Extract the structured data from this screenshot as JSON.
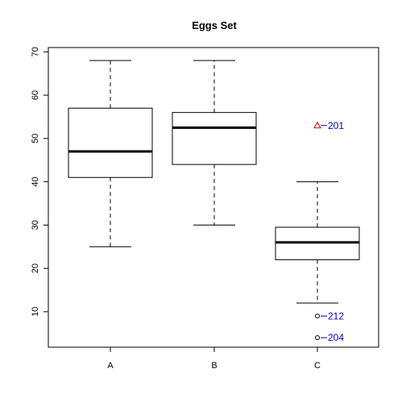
{
  "chart_data": {
    "type": "boxplot",
    "title": "Eggs Set",
    "xlabel": "",
    "ylabel": "",
    "categories": [
      "A",
      "B",
      "C"
    ],
    "ylim": [
      1.8,
      71
    ],
    "yticks": [
      10,
      20,
      30,
      40,
      50,
      60,
      70
    ],
    "boxes": [
      {
        "name": "A",
        "whisker_low": 25,
        "q1": 41,
        "median": 47,
        "q3": 57,
        "whisker_high": 68
      },
      {
        "name": "B",
        "whisker_low": 30,
        "q1": 44,
        "median": 52.5,
        "q3": 56,
        "whisker_high": 68
      },
      {
        "name": "C",
        "whisker_low": 12,
        "q1": 22,
        "median": 26,
        "q3": 29.5,
        "whisker_high": 40
      }
    ],
    "outliers": [
      {
        "category": "C",
        "value": 53,
        "label": "201",
        "marker": "triangle",
        "color": "#cc0000"
      },
      {
        "category": "C",
        "value": 9,
        "label": "212",
        "marker": "circle",
        "color": "#000000"
      },
      {
        "category": "C",
        "value": 4,
        "label": "204",
        "marker": "circle",
        "color": "#000000"
      }
    ],
    "colors": {
      "label": "#0000cc",
      "box": "#000000"
    }
  }
}
